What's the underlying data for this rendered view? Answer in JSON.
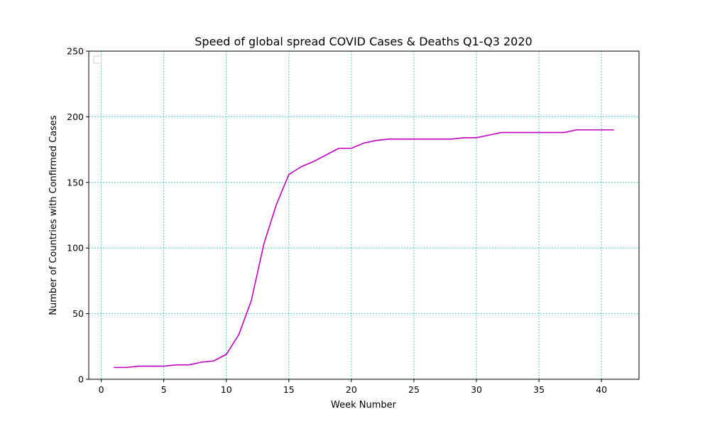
{
  "chart_data": {
    "type": "line",
    "title": "Speed of global spread COVID Cases & Deaths Q1-Q3 2020",
    "xlabel": "Week Number",
    "ylabel": "Number of Countries with Confirmed Cases",
    "xlim": [
      -1,
      43
    ],
    "ylim": [
      0,
      250
    ],
    "x_ticks": [
      0,
      5,
      10,
      15,
      20,
      25,
      30,
      35,
      40
    ],
    "y_ticks": [
      0,
      50,
      100,
      150,
      200,
      250
    ],
    "grid": true,
    "grid_color": "#17becf",
    "legend": {
      "placement": "upper-left",
      "entries": []
    },
    "series": [
      {
        "color": "#bf00bf",
        "x": [
          1,
          2,
          3,
          4,
          5,
          6,
          7,
          8,
          9,
          10,
          11,
          12,
          13,
          14,
          15,
          16,
          17,
          18,
          19,
          20,
          21,
          22,
          23,
          24,
          25,
          26,
          27,
          28,
          29,
          30,
          31,
          32,
          33,
          34,
          35,
          36,
          37,
          38,
          39,
          40,
          41
        ],
        "y": [
          9,
          9,
          10,
          10,
          10,
          11,
          11,
          13,
          14,
          19,
          34,
          60,
          103,
          133,
          156,
          162,
          166,
          171,
          176,
          176,
          180,
          182,
          183,
          183,
          183,
          183,
          183,
          183,
          184,
          184,
          186,
          188,
          188,
          188,
          188,
          188,
          188,
          190,
          190,
          190,
          190
        ]
      }
    ]
  }
}
